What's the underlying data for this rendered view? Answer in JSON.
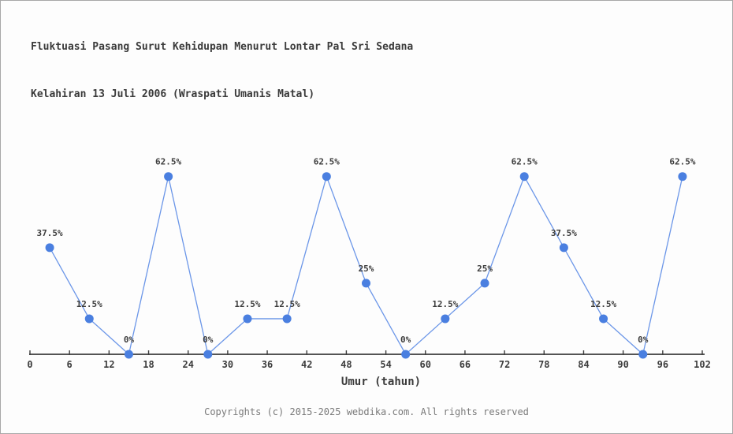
{
  "header": {
    "title_line1": "Fluktuasi Pasang Surut Kehidupan Menurut Lontar Pal Sri Sedana",
    "title_line2": "Kelahiran 13 Juli 2006 (Wraspati Umanis Matal)"
  },
  "chart_data": {
    "type": "line",
    "title": "Fluktuasi Pasang Surut Kehidupan Menurut Lontar Pal Sri Sedana Kelahiran 13 Juli 2006 (Wraspati Umanis Matal)",
    "xlabel": "Umur (tahun)",
    "ylabel": "",
    "x": [
      3,
      9,
      15,
      21,
      27,
      33,
      39,
      45,
      51,
      57,
      63,
      69,
      75,
      81,
      87,
      93,
      99
    ],
    "values": [
      37.5,
      12.5,
      0,
      62.5,
      0,
      12.5,
      12.5,
      62.5,
      25,
      0,
      12.5,
      25,
      62.5,
      37.5,
      12.5,
      0,
      62.5
    ],
    "point_labels": [
      "37.5%",
      "12.5%",
      "0%",
      "62.5%",
      "0%",
      "12.5%",
      "12.5%",
      "62.5%",
      "25%",
      "0%",
      "12.5%",
      "25%",
      "62.5%",
      "37.5%",
      "12.5%",
      "0%",
      "62.5%"
    ],
    "xticks": [
      0,
      6,
      12,
      18,
      24,
      30,
      36,
      42,
      48,
      54,
      60,
      66,
      72,
      78,
      84,
      90,
      96,
      102
    ],
    "xlim": [
      0,
      102
    ],
    "ylim": [
      0,
      100
    ],
    "grid": false,
    "legend": "none",
    "colors": {
      "line": "#6b96e8",
      "marker": "#4a7fe0",
      "axis": "#3c3c3c",
      "label_text": "#3c3c3c"
    }
  },
  "footer": {
    "copyright": "Copyrights (c) 2015-2025 webdika.com. All rights reserved"
  },
  "colors": {
    "background": "#fdfdfd",
    "border": "#a8a8a8",
    "title_text": "#3a3a3a",
    "footer_text": "#7a7a7a"
  }
}
